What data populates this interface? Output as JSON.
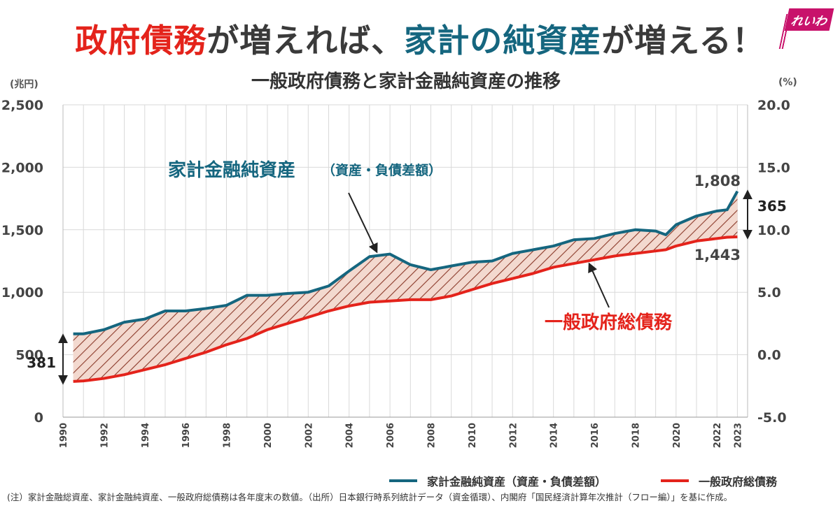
{
  "headline": {
    "part1": "政府債務",
    "part2": "が増えれば、",
    "part3": "家計の純資産",
    "part4": "が増える！"
  },
  "logo": "れいわ",
  "colors": {
    "red": "#e4231b",
    "blue": "#15667f",
    "grid": "#d9d9d9",
    "hatch": "#8b3a2a",
    "fill": "#f3d9cf"
  },
  "chart_data": {
    "type": "line",
    "title": "一般政府債務と家計金融純資産の推移",
    "left_unit": "(兆円)",
    "right_unit": "(%)",
    "y_ticks_left": [
      "0",
      "500",
      "1,000",
      "1,500",
      "2,000",
      "2,500"
    ],
    "y_ticks_right": [
      "-5.0",
      "0.0",
      "5.0",
      "10.0",
      "15.0",
      "20.0"
    ],
    "ylim": [
      0,
      2500
    ],
    "x_ticks": [
      "1990",
      "1992",
      "1994",
      "1996",
      "1998",
      "2000",
      "2002",
      "2004",
      "2006",
      "2008",
      "2010",
      "2012",
      "2014",
      "2016",
      "2018",
      "2020",
      "2022",
      "2023"
    ],
    "x": [
      1990.5,
      1991,
      1992,
      1993,
      1994,
      1995,
      1996,
      1997,
      1998,
      1999,
      2000,
      2001,
      2002,
      2003,
      2004,
      2005,
      2006,
      2007,
      2008,
      2009,
      2010,
      2011,
      2012,
      2013,
      2014,
      2015,
      2016,
      2017,
      2018,
      2019,
      2019.5,
      2020,
      2021,
      2022,
      2022.5,
      2023
    ],
    "series": [
      {
        "name": "家計金融純資産（資産・負債差額）",
        "color": "#15667f",
        "values": [
          667,
          667,
          700,
          760,
          785,
          850,
          850,
          870,
          895,
          975,
          975,
          990,
          1000,
          1050,
          1170,
          1285,
          1305,
          1220,
          1180,
          1210,
          1240,
          1250,
          1310,
          1340,
          1370,
          1420,
          1430,
          1470,
          1500,
          1490,
          1460,
          1540,
          1610,
          1650,
          1660,
          1808
        ]
      },
      {
        "name": "一般政府総債務",
        "color": "#e4231b",
        "values": [
          286,
          290,
          310,
          340,
          380,
          420,
          470,
          520,
          580,
          630,
          700,
          750,
          800,
          850,
          890,
          920,
          930,
          940,
          940,
          970,
          1020,
          1070,
          1110,
          1150,
          1200,
          1230,
          1260,
          1290,
          1310,
          1330,
          1340,
          1370,
          1410,
          1430,
          1440,
          1443
        ]
      }
    ],
    "annotations": {
      "label_net_assets": "家計金融純資産",
      "label_net_assets_sub": "（資産・負債差額）",
      "label_debt": "一般政府総債務",
      "value_end_assets": "1,808",
      "value_end_debt": "1,443",
      "gap_end": "365",
      "gap_start": "381"
    },
    "legend_position": "bottom-right",
    "grid": true
  },
  "legend": {
    "item1": "家計金融純資産（資産・負債差額）",
    "item2": "一般政府総債務"
  },
  "footnote": "(注）家計金融総資産、家計金融純資産、一般政府総債務は各年度末の数値。（出所）日本銀行時系列統計データ（資金循環）、内閣府「国民経済計算年次推計（フロー編）」を基に作成。"
}
